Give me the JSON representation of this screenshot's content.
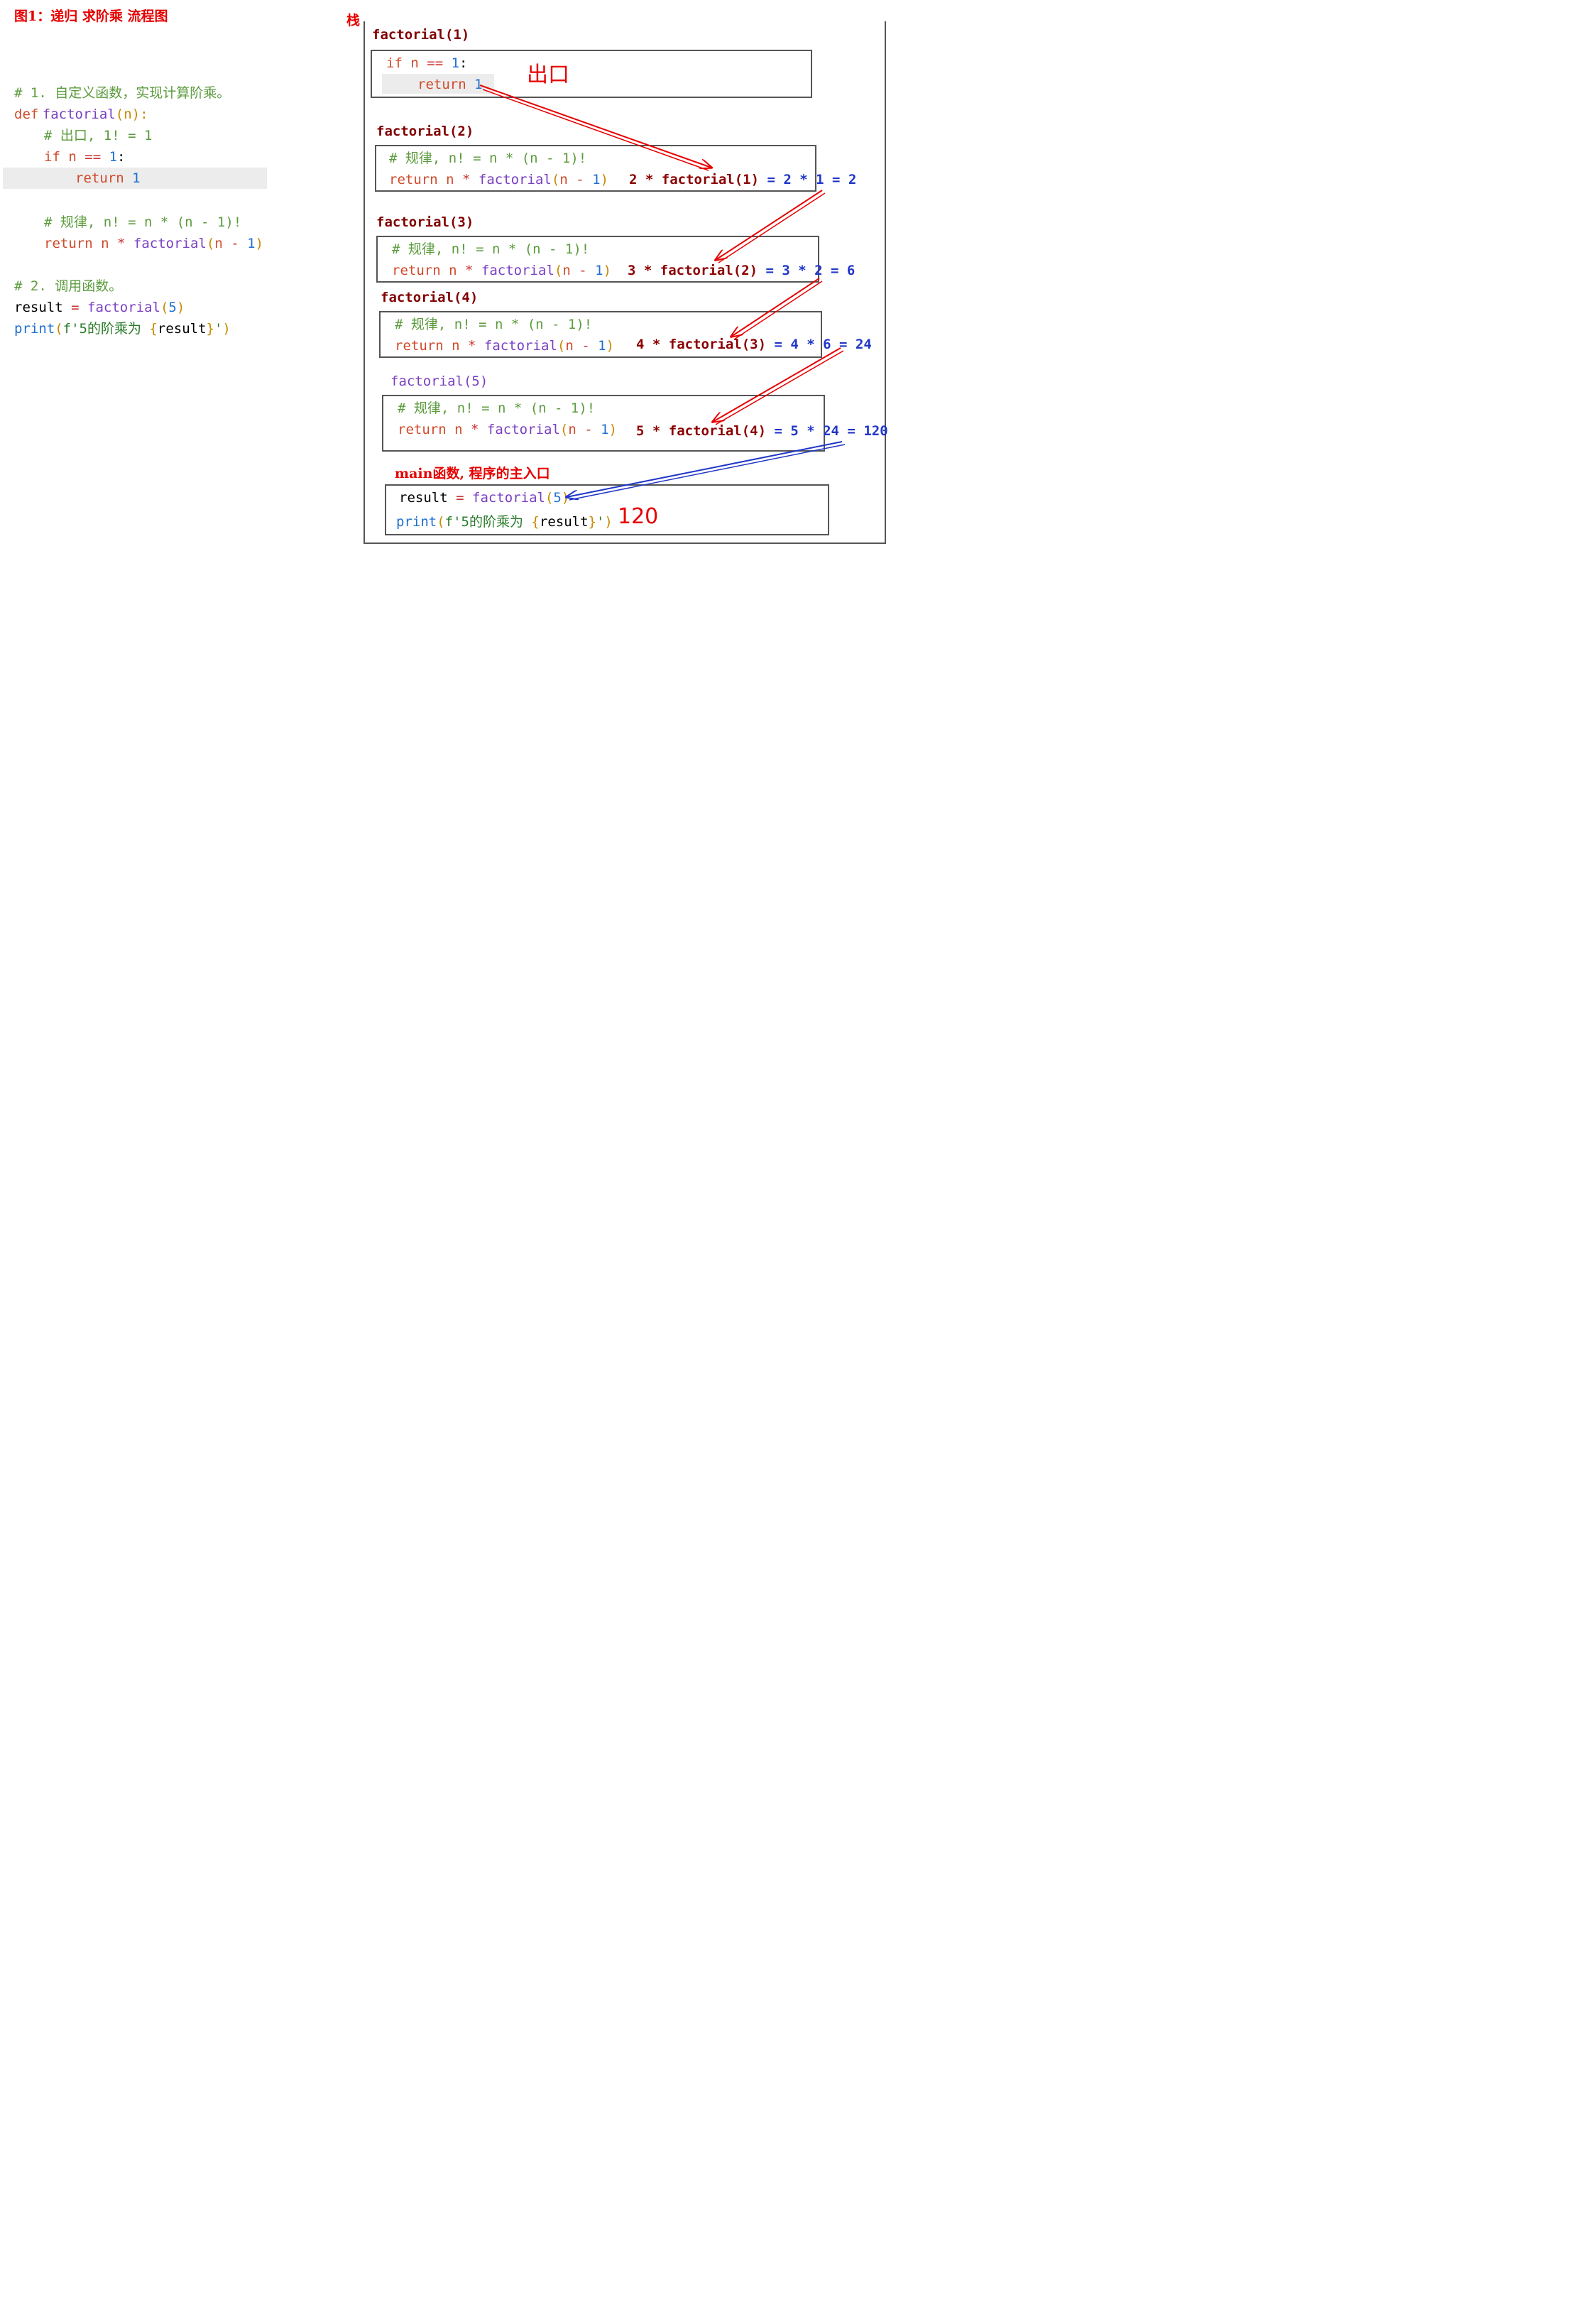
{
  "figure_title": "图1：递归 求阶乘 流程图",
  "stack_label": "栈",
  "left_code": [
    {
      "comment": "# 1. 自定义函数，实现计算阶乘。"
    },
    {
      "kw": "def",
      "fn": "factorial",
      "p1": "(",
      "arg": "n",
      "p2": "):"
    },
    {
      "comment": "# 出口,  1! = 1"
    },
    {
      "kw": "if",
      "var": "n",
      "op": "==",
      "num": "1",
      "colon": ":"
    },
    {
      "kw": "return",
      "num": "1"
    },
    {
      "comment": "# 规律, n! = n * (n - 1)!"
    },
    {
      "kw": "return",
      "var": "n",
      "op": "*",
      "fn": "factorial",
      "p1": "(",
      "arg": "n",
      "op2": "-",
      "num": "1",
      "p2": ")"
    },
    {
      "comment": "# 2. 调用函数。"
    },
    {
      "var": "result",
      "op": "=",
      "fn": "factorial",
      "p1": "(",
      "num": "5",
      "p2": ")"
    },
    {
      "builtin": "print",
      "p1": "(",
      "str_a": "f'5的阶乘为 ",
      "brace_o": "{",
      "inner": "result",
      "brace_c": "}",
      "str_b": "'",
      "p2": ")"
    }
  ],
  "frames": [
    {
      "title": "factorial(1)",
      "line1": {
        "kw": "if",
        "var": "n",
        "op": "==",
        "num": "1",
        "colon": ":"
      },
      "line2": {
        "kw": "return",
        "num": "1"
      },
      "note": "出口"
    },
    {
      "title": "factorial(2)",
      "comment": "# 规律, n! = n * (n - 1)!",
      "ret": {
        "kw": "return",
        "var": "n",
        "op": "*",
        "fn": "factorial",
        "p1": "(",
        "arg": "n",
        "op2": "-",
        "num": "1",
        "p2": ")"
      },
      "calc_dark": "2 * factorial(1)",
      "calc_blue": "= 2 * 1 = 2"
    },
    {
      "title": "factorial(3)",
      "comment": "# 规律, n! = n * (n - 1)!",
      "ret": {
        "kw": "return",
        "var": "n",
        "op": "*",
        "fn": "factorial",
        "p1": "(",
        "arg": "n",
        "op2": "-",
        "num": "1",
        "p2": ")"
      },
      "calc_dark": "3 * factorial(2)",
      "calc_blue": "= 3 * 2 = 6"
    },
    {
      "title": "factorial(4)",
      "comment": "# 规律, n! = n * (n - 1)!",
      "ret": {
        "kw": "return",
        "var": "n",
        "op": "*",
        "fn": "factorial",
        "p1": "(",
        "arg": "n",
        "op2": "-",
        "num": "1",
        "p2": ")"
      },
      "calc_dark": "4 * factorial(3)",
      "calc_blue": "= 4 * 6 = 24"
    },
    {
      "title": "factorial(5)",
      "comment": "# 规律, n! = n * (n - 1)!",
      "ret": {
        "kw": "return",
        "var": "n",
        "op": "*",
        "fn": "factorial",
        "p1": "(",
        "arg": "n",
        "op2": "-",
        "num": "1",
        "p2": ")"
      },
      "calc_dark": "5 * factorial(4)",
      "calc_blue": "= 5 * 24 = 120"
    }
  ],
  "main_frame": {
    "title": "main函数, 程序的主入口",
    "line1": {
      "var": "result",
      "op": "=",
      "fn": "factorial",
      "p1": "(",
      "num": "5",
      "p2": ")"
    },
    "line2": {
      "builtin": "print",
      "p1": "(",
      "str_a": "f'5的阶乘为 ",
      "brace_o": "{",
      "inner": "result",
      "brace_c": "}",
      "str_b": "'",
      "p2": ")"
    },
    "output": "120"
  },
  "colors": {
    "arrow_red": "#e60000",
    "arrow_blue": "#2036c8",
    "frame_border": "#555555"
  }
}
